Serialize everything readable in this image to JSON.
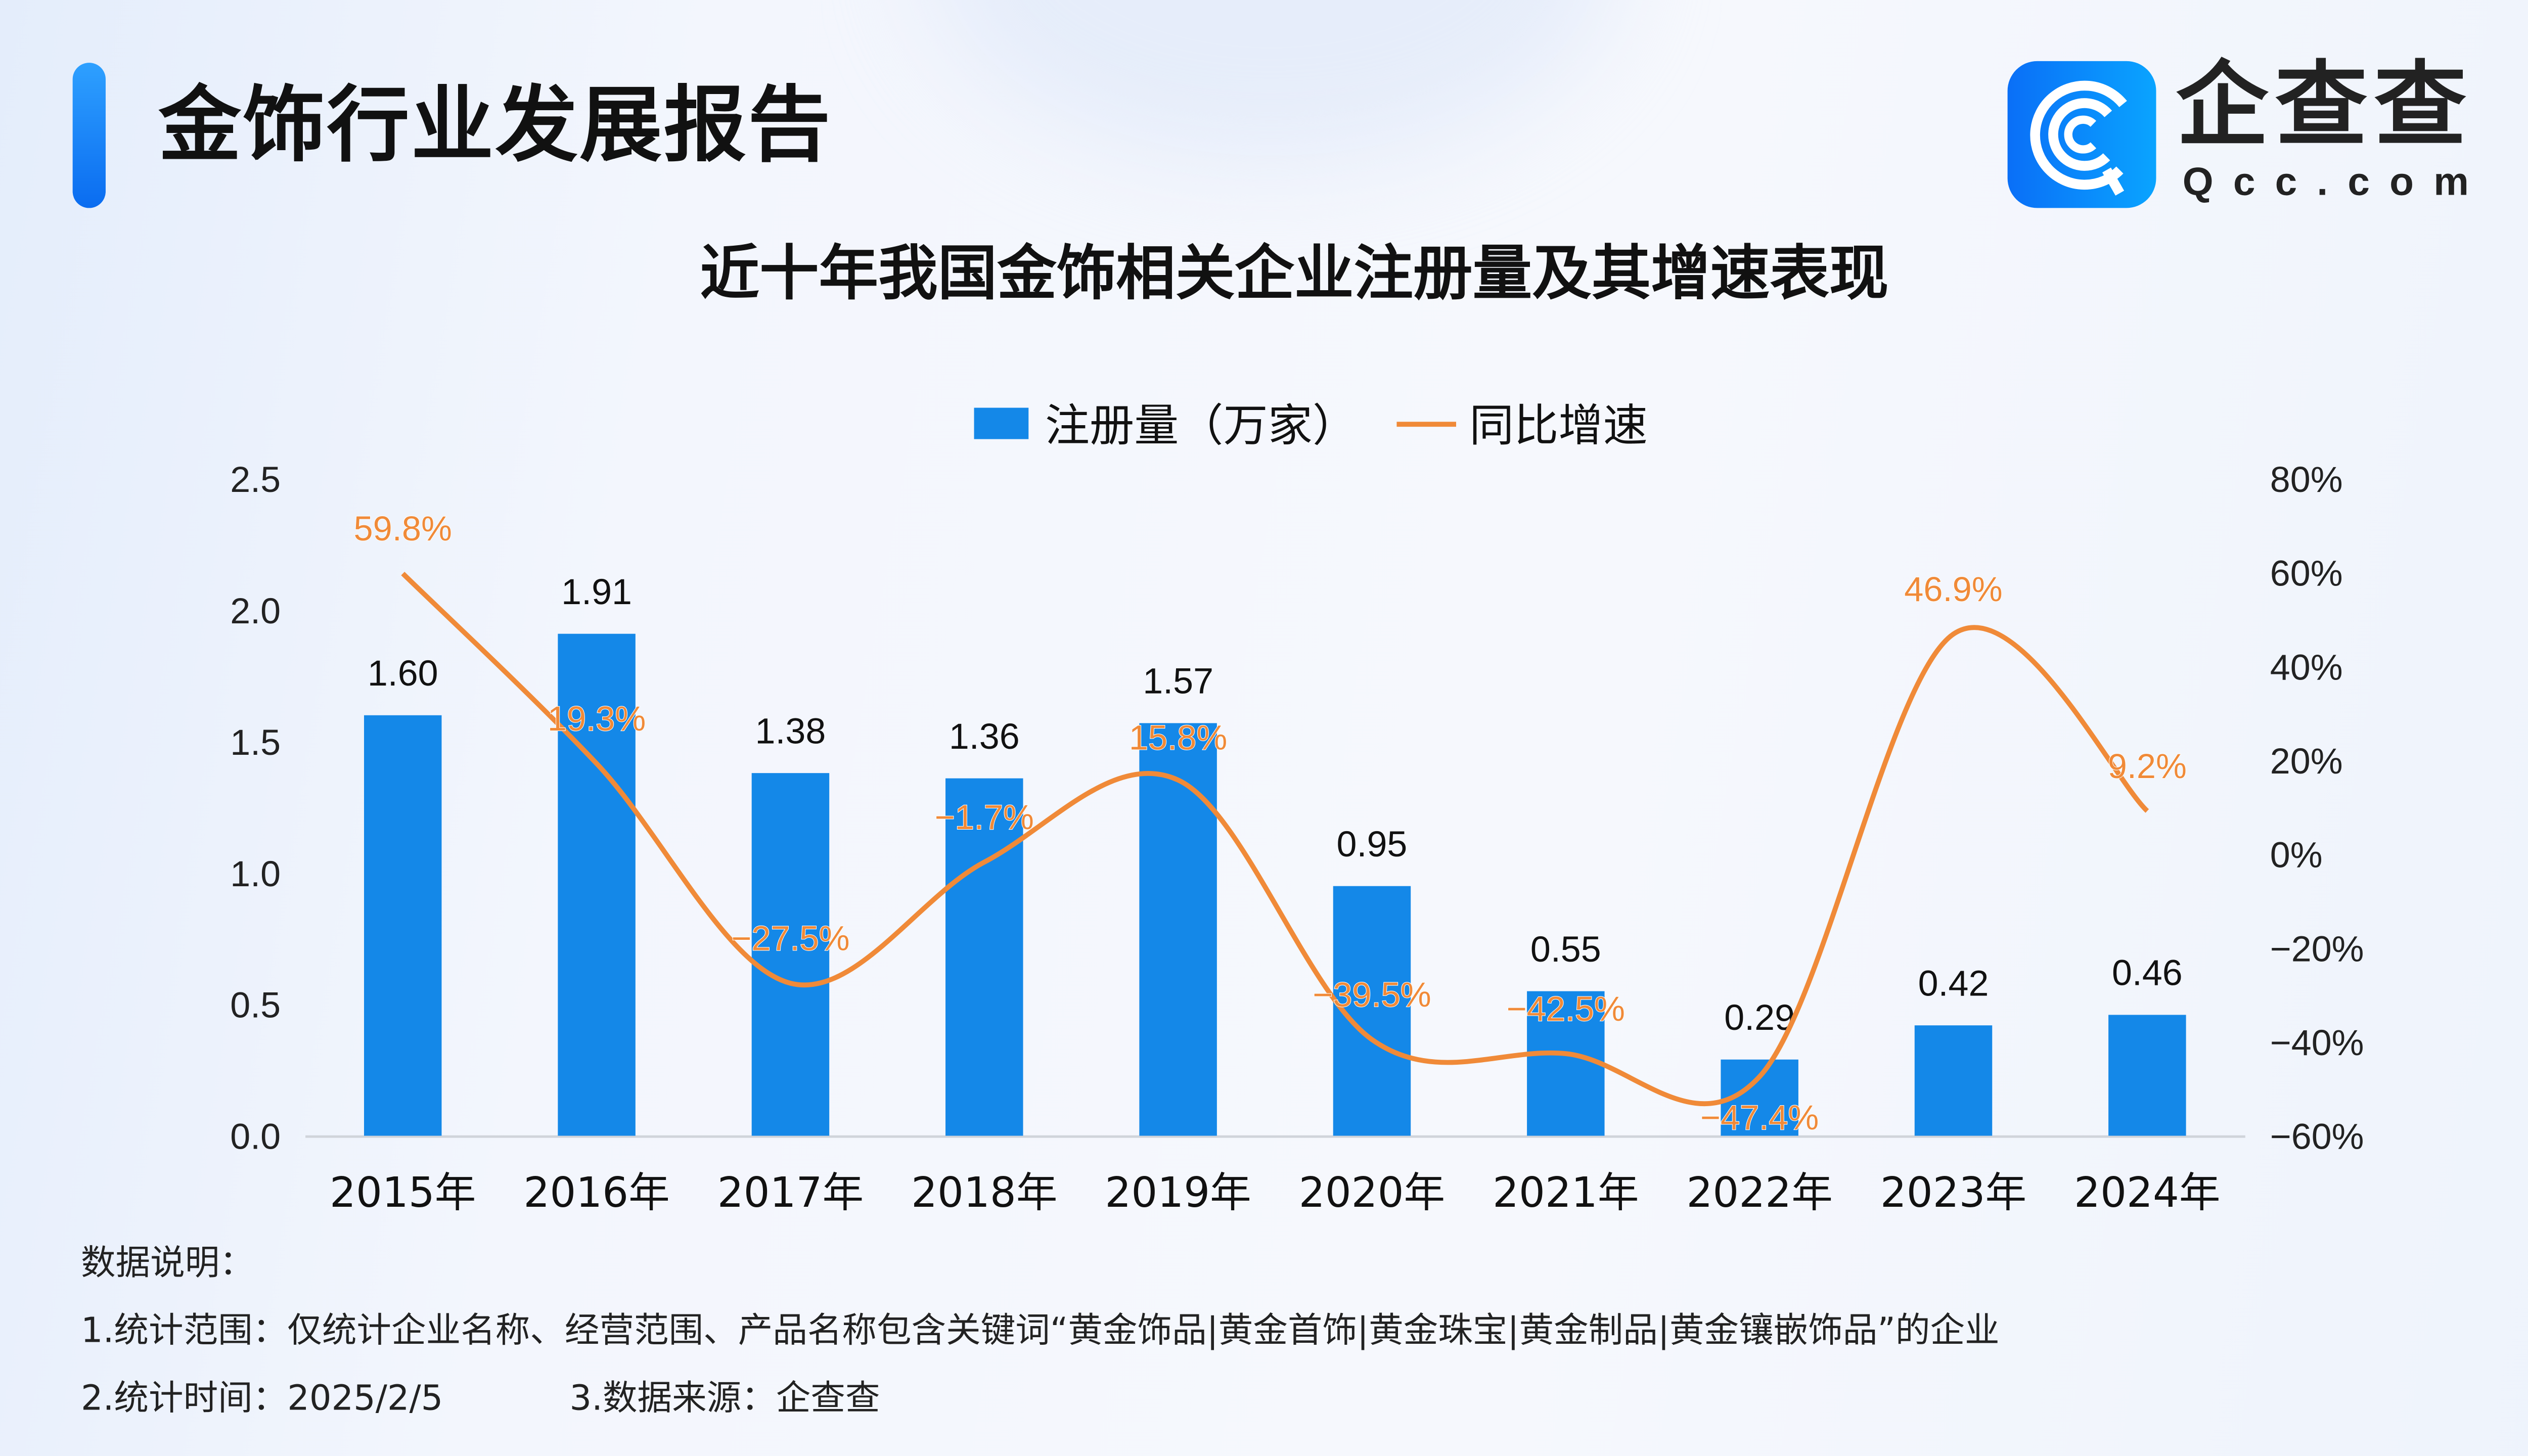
{
  "header": {
    "title": "金饰行业发展报告"
  },
  "logo": {
    "name_cn": "企查查",
    "name_en": "Qcc.com"
  },
  "chart_data": {
    "type": "bar+line",
    "title": "近十年我国金饰相关企业注册量及其增速表现",
    "categories": [
      "2015年",
      "2016年",
      "2017年",
      "2018年",
      "2019年",
      "2020年",
      "2021年",
      "2022年",
      "2023年",
      "2024年"
    ],
    "series": [
      {
        "name": "注册量（万家）",
        "type": "bar",
        "axis": "left",
        "color": "#1488e8",
        "values": [
          1.6,
          1.91,
          1.38,
          1.36,
          1.57,
          0.95,
          0.55,
          0.29,
          0.42,
          0.46
        ],
        "labels": [
          "1.60",
          "1.91",
          "1.38",
          "1.36",
          "1.57",
          "0.95",
          "0.55",
          "0.29",
          "0.42",
          "0.46"
        ]
      },
      {
        "name": "同比增速",
        "type": "line",
        "axis": "right",
        "color": "#f08a38",
        "values": [
          59.8,
          19.3,
          -27.5,
          -1.7,
          15.8,
          -39.5,
          -42.5,
          -47.4,
          46.9,
          9.2
        ],
        "labels": [
          "59.8%",
          "19.3%",
          "-27.5%",
          "-1.7%",
          "15.8%",
          "-39.5%",
          "-42.5%",
          "-47.4%",
          "46.9%",
          "9.2%"
        ]
      }
    ],
    "left_axis": {
      "ylim": [
        0,
        2.5
      ],
      "ticks": [
        "0.0",
        "0.5",
        "1.0",
        "1.5",
        "2.0",
        "2.5"
      ]
    },
    "right_axis": {
      "ylim": [
        -60,
        80
      ],
      "ticks": [
        "-60%",
        "-40%",
        "-20%",
        "0%",
        "20%",
        "40%",
        "60%",
        "80%"
      ]
    },
    "legend_position": "top-center",
    "grid": false
  },
  "notes": {
    "heading": "数据说明：",
    "line1": "1.统计范围：仅统计企业名称、经营范围、产品名称包含关键词“黄金饰品|黄金首饰|黄金珠宝|黄金制品|黄金镶嵌饰品”的企业",
    "line2a": "2.统计时间：2025/2/5",
    "line2b": "3.数据来源：企查查"
  }
}
